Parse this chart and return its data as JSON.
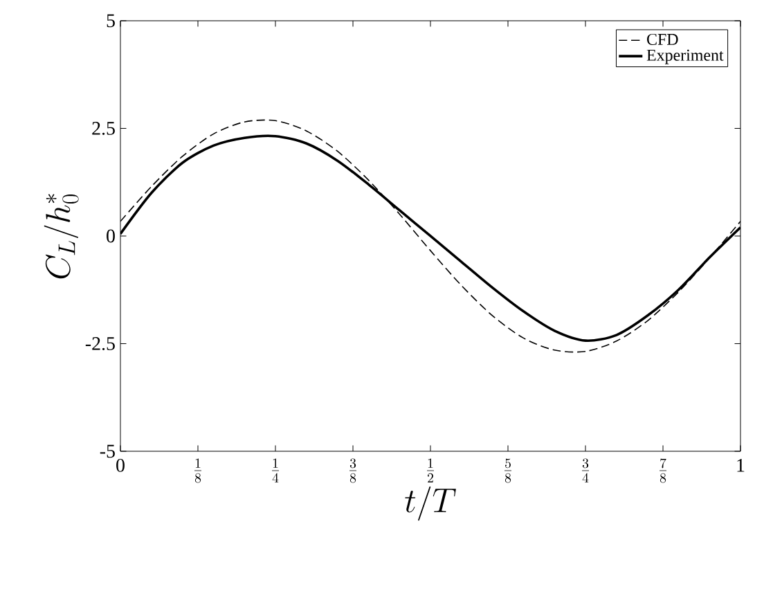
{
  "chart_data": {
    "type": "line",
    "xlabel": "t/T",
    "ylabel": "C_L/h_0^*",
    "x": [
      0,
      0.05,
      0.1,
      0.15,
      0.2,
      0.25,
      0.3,
      0.35,
      0.4,
      0.45,
      0.5,
      0.55,
      0.6,
      0.65,
      0.7,
      0.75,
      0.8,
      0.85,
      0.9,
      0.95,
      1.0
    ],
    "series": [
      {
        "name": "CFD",
        "color": "#000000",
        "line_style": "dashed",
        "values": [
          0.34,
          1.15,
          1.85,
          2.37,
          2.65,
          2.68,
          2.44,
          1.97,
          1.3,
          0.51,
          -0.34,
          -1.15,
          -1.85,
          -2.37,
          -2.65,
          -2.68,
          -2.44,
          -1.97,
          -1.3,
          -0.51,
          0.34
        ]
      },
      {
        "name": "Experiment",
        "color": "#000000",
        "line_style": "solid",
        "values": [
          0.05,
          1.0,
          1.7,
          2.1,
          2.28,
          2.32,
          2.15,
          1.75,
          1.2,
          0.6,
          0.0,
          -0.6,
          -1.2,
          -1.75,
          -2.2,
          -2.43,
          -2.3,
          -1.85,
          -1.25,
          -0.5,
          0.2
        ]
      }
    ],
    "xlim": [
      0,
      1
    ],
    "ylim": [
      -5,
      5
    ],
    "xticks": [
      0,
      {
        "value": 0.125,
        "label": "\\frac{1}{8}"
      },
      {
        "value": 0.25,
        "label": "\\frac{1}{4}"
      },
      {
        "value": 0.375,
        "label": "\\frac{3}{8}"
      },
      {
        "value": 0.5,
        "label": "\\frac{1}{2}"
      },
      {
        "value": 0.625,
        "label": "\\frac{5}{8}"
      },
      {
        "value": 0.75,
        "label": "\\frac{3}{4}"
      },
      {
        "value": 0.875,
        "label": "\\frac{7}{8}"
      },
      1
    ],
    "yticks": [
      -5,
      -2.5,
      0,
      2.5,
      5
    ],
    "legend": "top right",
    "grid": false,
    "marker": "none"
  }
}
